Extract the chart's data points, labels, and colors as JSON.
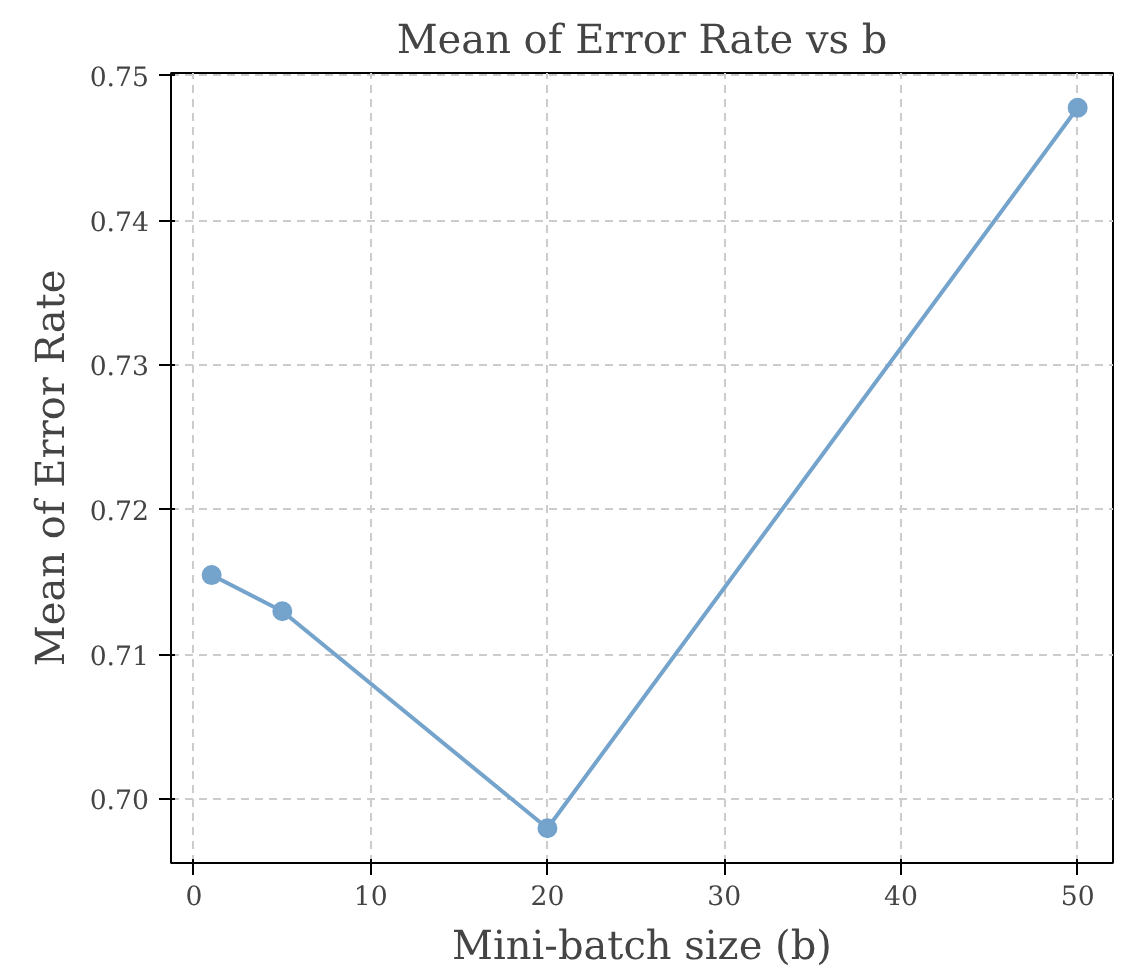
{
  "chart_data": {
    "type": "line",
    "title": "Mean of Error Rate vs b",
    "xlabel": "Mini-batch size (b)",
    "ylabel": "Mean of Error Rate",
    "x": [
      1,
      5,
      20,
      50
    ],
    "series": [
      {
        "color": "#74a3cc",
        "values": [
          0.7155,
          0.713,
          0.698,
          0.7478
        ]
      }
    ],
    "xlim": [
      -1.3,
      52
    ],
    "xticks": [
      0,
      10,
      20,
      30,
      40,
      50
    ],
    "ylim": [
      0.6956,
      0.7502
    ],
    "yticks": [
      {
        "value": 0.7,
        "label": "0.70"
      },
      0.71,
      0.72,
      0.73,
      0.74,
      0.75
    ],
    "grid": true,
    "marker": "circle",
    "line_style": "solid"
  }
}
